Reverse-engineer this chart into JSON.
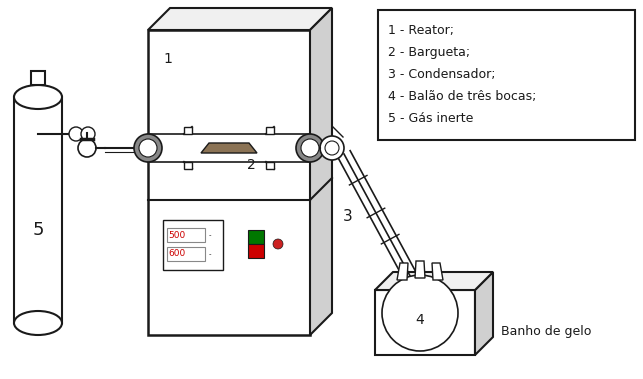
{
  "background_color": "#ffffff",
  "legend_items": [
    "1 - Reator;",
    "2 - Bargueta;",
    "3 - Condensador;",
    "4 - Balão de três bocas;",
    "5 - Gás inerte"
  ],
  "label_banho": "Banho de gelo",
  "label_3": "3",
  "label_5": "5",
  "label_4": "4",
  "label_1": "1",
  "label_2": "2",
  "display_500": "500",
  "display_600": "600",
  "lc": "#1a1a1a",
  "fill_light": "#f0f0f0",
  "fill_white": "#ffffff",
  "fill_gray": "#d0d0d0",
  "fill_darkgray": "#888888",
  "red_color": "#cc0000",
  "green_color": "#007700",
  "boat_color": "#8B7355"
}
